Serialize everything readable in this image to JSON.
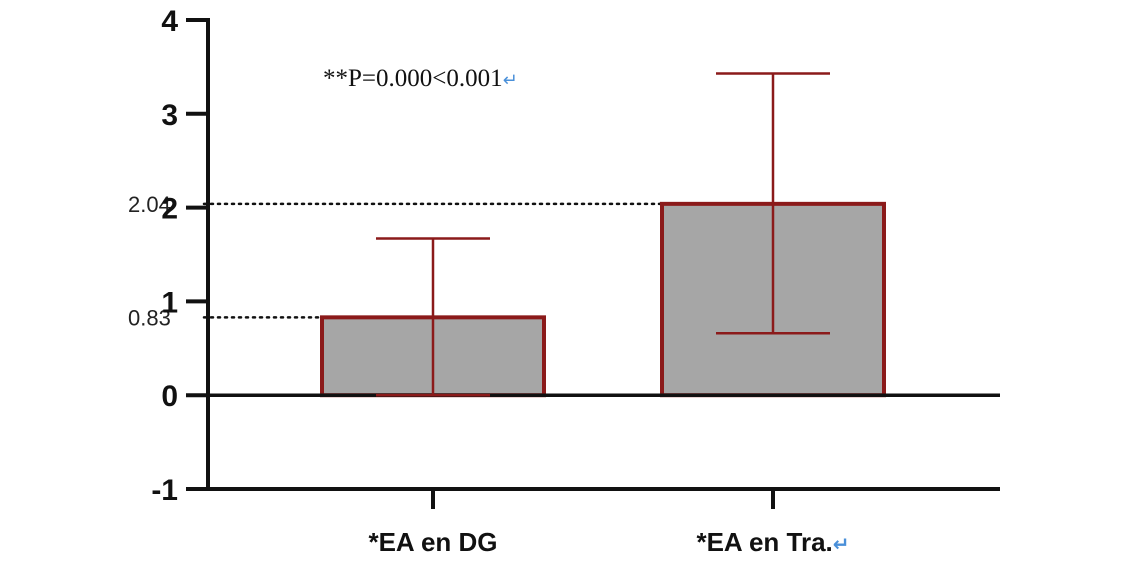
{
  "chart_data": {
    "type": "bar",
    "title": "",
    "xlabel": "",
    "ylabel": "",
    "categories": [
      "*EA en DG",
      "*EA en Tra."
    ],
    "values": [
      0.83,
      2.04
    ],
    "error_upper": [
      1.67,
      3.43
    ],
    "error_lower": [
      0.0,
      0.66
    ],
    "ylim": [
      -1,
      4
    ],
    "yticks": [
      "-1",
      "0",
      "1",
      "2",
      "3",
      "4"
    ],
    "reference_lines": [
      {
        "value": 0.83,
        "label": "0.83"
      },
      {
        "value": 2.04,
        "label": "2.04"
      }
    ],
    "annotation": "**P=0.000<0.001",
    "return_mark": "↵",
    "grid": false,
    "legend": "none"
  },
  "colors": {
    "bar_fill": "#a6a6a6",
    "bar_stroke": "#8b1a1a",
    "error_bar": "#8b1a1a",
    "axis": "#111111",
    "reference_line": "#111111",
    "return_mark": "#4a90d9"
  }
}
